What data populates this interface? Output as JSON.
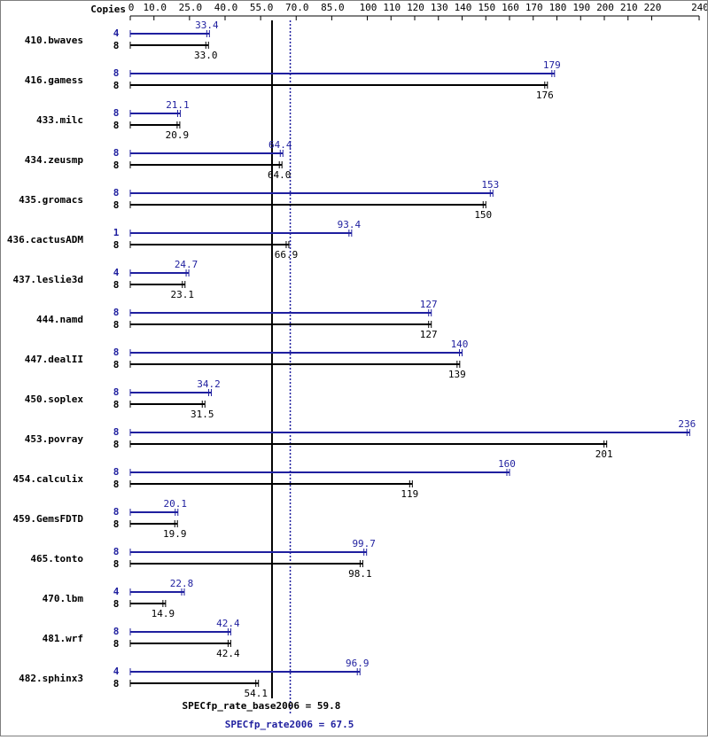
{
  "chart_data": {
    "type": "bar",
    "orientation": "horizontal",
    "title": "",
    "header_label": "Copies",
    "x_ticks": [
      "0",
      "10.0",
      "25.0",
      "40.0",
      "55.0",
      "70.0",
      "85.0",
      "100",
      "110",
      "120",
      "130",
      "140",
      "150",
      "160",
      "170",
      "180",
      "190",
      "200",
      "210",
      "220",
      "240"
    ],
    "xlim": [
      0,
      240
    ],
    "colors": {
      "base": "#000000",
      "peak": "#1f1f9f"
    },
    "series": [
      {
        "name": "peak",
        "color": "#1f1f9f"
      },
      {
        "name": "base",
        "color": "#000000"
      }
    ],
    "benchmarks": [
      {
        "name": "410.bwaves",
        "peak_copies": "4",
        "peak": 33.4,
        "peak_label": "33.4",
        "base_copies": "8",
        "base": 33.0,
        "base_label": "33.0"
      },
      {
        "name": "416.gamess",
        "peak_copies": "8",
        "peak": 179,
        "peak_label": "179",
        "base_copies": "8",
        "base": 176,
        "base_label": "176"
      },
      {
        "name": "433.milc",
        "peak_copies": "8",
        "peak": 21.1,
        "peak_label": "21.1",
        "base_copies": "8",
        "base": 20.9,
        "base_label": "20.9"
      },
      {
        "name": "434.zeusmp",
        "peak_copies": "8",
        "peak": 64.4,
        "peak_label": "64.4",
        "base_copies": "8",
        "base": 64.0,
        "base_label": "64.0"
      },
      {
        "name": "435.gromacs",
        "peak_copies": "8",
        "peak": 153,
        "peak_label": "153",
        "base_copies": "8",
        "base": 150,
        "base_label": "150"
      },
      {
        "name": "436.cactusADM",
        "peak_copies": "1",
        "peak": 93.4,
        "peak_label": "93.4",
        "base_copies": "8",
        "base": 66.9,
        "base_label": "66.9"
      },
      {
        "name": "437.leslie3d",
        "peak_copies": "4",
        "peak": 24.7,
        "peak_label": "24.7",
        "base_copies": "8",
        "base": 23.1,
        "base_label": "23.1"
      },
      {
        "name": "444.namd",
        "peak_copies": "8",
        "peak": 127,
        "peak_label": "127",
        "base_copies": "8",
        "base": 127,
        "base_label": "127"
      },
      {
        "name": "447.dealII",
        "peak_copies": "8",
        "peak": 140,
        "peak_label": "140",
        "base_copies": "8",
        "base": 139,
        "base_label": "139"
      },
      {
        "name": "450.soplex",
        "peak_copies": "8",
        "peak": 34.2,
        "peak_label": "34.2",
        "base_copies": "8",
        "base": 31.5,
        "base_label": "31.5"
      },
      {
        "name": "453.povray",
        "peak_copies": "8",
        "peak": 236,
        "peak_label": "236",
        "base_copies": "8",
        "base": 201,
        "base_label": "201"
      },
      {
        "name": "454.calculix",
        "peak_copies": "8",
        "peak": 160,
        "peak_label": "160",
        "base_copies": "8",
        "base": 119,
        "base_label": "119"
      },
      {
        "name": "459.GemsFDTD",
        "peak_copies": "8",
        "peak": 20.1,
        "peak_label": "20.1",
        "base_copies": "8",
        "base": 19.9,
        "base_label": "19.9"
      },
      {
        "name": "465.tonto",
        "peak_copies": "8",
        "peak": 99.7,
        "peak_label": "99.7",
        "base_copies": "8",
        "base": 98.1,
        "base_label": "98.1"
      },
      {
        "name": "470.lbm",
        "peak_copies": "4",
        "peak": 22.8,
        "peak_label": "22.8",
        "base_copies": "8",
        "base": 14.9,
        "base_label": "14.9"
      },
      {
        "name": "481.wrf",
        "peak_copies": "8",
        "peak": 42.4,
        "peak_label": "42.4",
        "base_copies": "8",
        "base": 42.4,
        "base_label": "42.4"
      },
      {
        "name": "482.sphinx3",
        "peak_copies": "4",
        "peak": 96.9,
        "peak_label": "96.9",
        "base_copies": "8",
        "base": 54.1,
        "base_label": "54.1"
      }
    ],
    "reference_lines": [
      {
        "name": "base",
        "value": 59.8,
        "label": "SPECfp_rate_base2006 = 59.8",
        "style": "solid",
        "color": "#000000"
      },
      {
        "name": "peak",
        "value": 67.5,
        "label": "SPECfp_rate2006 = 67.5",
        "style": "dotted",
        "color": "#1f1f9f"
      }
    ]
  }
}
